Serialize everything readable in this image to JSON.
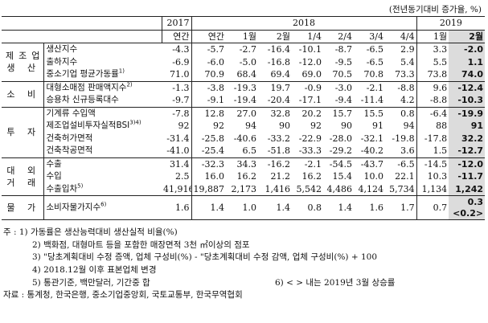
{
  "unit_note": "(전년동기대비 증가율, %)",
  "header": {
    "years": [
      "2017",
      "2018",
      "2019"
    ],
    "columns": [
      "연간",
      "연간",
      "1월",
      "2월",
      "1/4",
      "2/4",
      "3/4",
      "4/4",
      "1월",
      "2월"
    ]
  },
  "groups": [
    {
      "cat": "제조업\n생 산",
      "rows": [
        {
          "label": "생산지수",
          "sup": "",
          "values": [
            "-4.3",
            "-5.7",
            "-2.7",
            "-16.4",
            "-10.1",
            "-8.7",
            "-6.5",
            "2.9",
            "3.3",
            "-2.0"
          ]
        },
        {
          "label": "출하지수",
          "sup": "",
          "values": [
            "-6.9",
            "-6.0",
            "-5.0",
            "-16.8",
            "-12.0",
            "-9.5",
            "-6.5",
            "5.4",
            "5.5",
            "1.1"
          ]
        },
        {
          "label": "중소기업 평균가동률",
          "sup": "1)",
          "values": [
            "71.0",
            "70.9",
            "68.4",
            "69.4",
            "69.0",
            "70.5",
            "70.8",
            "73.3",
            "73.8",
            "74.0"
          ]
        }
      ]
    },
    {
      "cat": "소 비",
      "rows": [
        {
          "label": "대형소매점 판매액지수",
          "sup": "2)",
          "values": [
            "-1.3",
            "-3.8",
            "-19.3",
            "19.7",
            "-0.9",
            "-3.0",
            "-2.1",
            "-8.8",
            "9.6",
            "-12.4"
          ]
        },
        {
          "label": "승용차 신규등록대수",
          "sup": "",
          "values": [
            "-9.7",
            "-9.1",
            "-19.4",
            "-20.4",
            "-17.1",
            "-9.4",
            "-11.4",
            "4.2",
            "-8.8",
            "-10.3"
          ]
        }
      ]
    },
    {
      "cat": "투 자",
      "rows": [
        {
          "label": "기계류 수입액",
          "sup": "",
          "values": [
            "-7.8",
            "12.8",
            "27.0",
            "32.8",
            "20.2",
            "15.7",
            "15.5",
            "0.8",
            "-6.4",
            "-19.9"
          ]
        },
        {
          "label": "제조업설비투자실적BSI",
          "sup": "3)4)",
          "values": [
            "92",
            "92",
            "94",
            "90",
            "92",
            "90",
            "91",
            "94",
            "88",
            "91"
          ]
        },
        {
          "label": "건축허가면적",
          "sup": "",
          "values": [
            "-31.4",
            "-25.8",
            "-40.6",
            "-33.2",
            "-22.9",
            "-28.0",
            "-32.1",
            "-19.8",
            "-17.8",
            "32.2"
          ]
        },
        {
          "label": "건축착공면적",
          "sup": "",
          "values": [
            "-41.0",
            "-25.4",
            "6.5",
            "-51.8",
            "-33.3",
            "-29.2",
            "-40.2",
            "3.6",
            "1.5",
            "-12.7"
          ]
        }
      ]
    },
    {
      "cat": "대 외\n거 래",
      "rows": [
        {
          "label": "수출",
          "sup": "",
          "values": [
            "31.4",
            "-32.3",
            "34.3",
            "-16.2",
            "-2.1",
            "-54.5",
            "-43.7",
            "-6.5",
            "-14.5",
            "-12.0"
          ]
        },
        {
          "label": "수입",
          "sup": "",
          "values": [
            "2.5",
            "16.0",
            "16.2",
            "21.2",
            "16.2",
            "15.4",
            "10.0",
            "22.1",
            "10.3",
            "-11.7"
          ]
        },
        {
          "label": "수출입차",
          "sup": "5)",
          "values": [
            "41,916",
            "19,887",
            "2,173",
            "1,416",
            "5,542",
            "4,486",
            "4,124",
            "5,734",
            "1,134",
            "1,242"
          ]
        }
      ]
    },
    {
      "cat": "물 가",
      "rows": [
        {
          "label": "소비자물가지수",
          "sup": "6)",
          "values": [
            "1.6",
            "1.4",
            "1.0",
            "1.4",
            "0.8",
            "1.4",
            "1.6",
            "1.7",
            "0.7",
            "0.3"
          ],
          "extra": "<0.2>"
        }
      ]
    }
  ],
  "notes": [
    {
      "text": "주 : 1) 가동률은 생산능력대비 생산실적 비율(%)"
    },
    {
      "text": "2) 백화점, 대형마트 등을 포함한 매장면적 3천 ㎡이상의 점포"
    },
    {
      "text": "3) \"당초계획대비 수정 증액, 업체 구성비(%) - \"당초계획대비 수정 감액, 업체 구성비(%) + 100"
    },
    {
      "text": "4) 2018.12월 이후 표본업체 변경"
    },
    {
      "text": "5) 통관기준, 백만달러, 기간중 합",
      "right": "6) < > 내는 2019년 3월 상승률"
    },
    {
      "text": "자료 : 통계청, 한국은행, 중소기업중앙회, 국토교통부, 한국무역협회"
    }
  ],
  "style": {
    "highlight": "#dcdcdc",
    "rule": "#222222"
  }
}
